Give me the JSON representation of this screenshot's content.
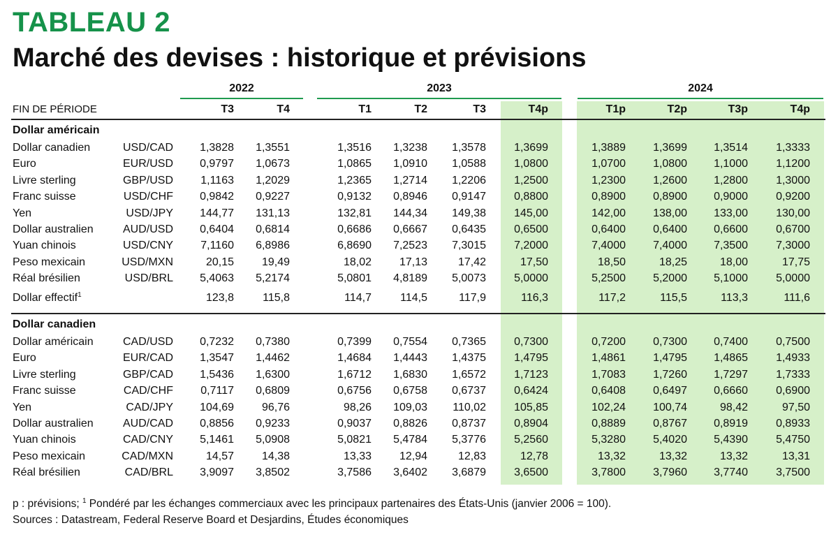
{
  "label": "TABLEAU 2",
  "title": "Marché des devises : historique et prévisions",
  "header": {
    "period_label": "FIN DE PÉRIODE",
    "years": [
      "2022",
      "2023",
      "2024"
    ],
    "columns": [
      "T3",
      "T4",
      "T1",
      "T2",
      "T3",
      "T4p",
      "T1p",
      "T2p",
      "T3p",
      "T4p"
    ]
  },
  "sections": [
    {
      "title": "Dollar américain",
      "rows": [
        {
          "name": "Dollar canadien",
          "pair": "USD/CAD",
          "values": [
            "1,3828",
            "1,3551",
            "1,3516",
            "1,3238",
            "1,3578",
            "1,3699",
            "1,3889",
            "1,3699",
            "1,3514",
            "1,3333"
          ]
        },
        {
          "name": "Euro",
          "pair": "EUR/USD",
          "values": [
            "0,9797",
            "1,0673",
            "1,0865",
            "1,0910",
            "1,0588",
            "1,0800",
            "1,0700",
            "1,0800",
            "1,1000",
            "1,1200"
          ]
        },
        {
          "name": "Livre sterling",
          "pair": "GBP/USD",
          "values": [
            "1,1163",
            "1,2029",
            "1,2365",
            "1,2714",
            "1,2206",
            "1,2500",
            "1,2300",
            "1,2600",
            "1,2800",
            "1,3000"
          ]
        },
        {
          "name": "Franc suisse",
          "pair": "USD/CHF",
          "values": [
            "0,9842",
            "0,9227",
            "0,9132",
            "0,8946",
            "0,9147",
            "0,8800",
            "0,8900",
            "0,8900",
            "0,9000",
            "0,9200"
          ]
        },
        {
          "name": "Yen",
          "pair": "USD/JPY",
          "values": [
            "144,77",
            "131,13",
            "132,81",
            "144,34",
            "149,38",
            "145,00",
            "142,00",
            "138,00",
            "133,00",
            "130,00"
          ]
        },
        {
          "name": "Dollar australien",
          "pair": "AUD/USD",
          "values": [
            "0,6404",
            "0,6814",
            "0,6686",
            "0,6667",
            "0,6435",
            "0,6500",
            "0,6400",
            "0,6400",
            "0,6600",
            "0,6700"
          ]
        },
        {
          "name": "Yuan chinois",
          "pair": "USD/CNY",
          "values": [
            "7,1160",
            "6,8986",
            "6,8690",
            "7,2523",
            "7,3015",
            "7,2000",
            "7,4000",
            "7,4000",
            "7,3500",
            "7,3000"
          ]
        },
        {
          "name": "Peso mexicain",
          "pair": "USD/MXN",
          "values": [
            "20,15",
            "19,49",
            "18,02",
            "17,13",
            "17,42",
            "17,50",
            "18,50",
            "18,25",
            "18,00",
            "17,75"
          ]
        },
        {
          "name": "Réal brésilien",
          "pair": "USD/BRL",
          "values": [
            "5,4063",
            "5,2174",
            "5,0801",
            "4,8189",
            "5,0073",
            "5,0000",
            "5,2500",
            "5,2000",
            "5,1000",
            "5,0000"
          ]
        },
        {
          "name": "Dollar effectif",
          "note": "1",
          "pair": "",
          "values": [
            "123,8",
            "115,8",
            "114,7",
            "114,5",
            "117,9",
            "116,3",
            "117,2",
            "115,5",
            "113,3",
            "111,6"
          ]
        }
      ]
    },
    {
      "title": "Dollar canadien",
      "rows": [
        {
          "name": "Dollar américain",
          "pair": "CAD/USD",
          "values": [
            "0,7232",
            "0,7380",
            "0,7399",
            "0,7554",
            "0,7365",
            "0,7300",
            "0,7200",
            "0,7300",
            "0,7400",
            "0,7500"
          ]
        },
        {
          "name": "Euro",
          "pair": "EUR/CAD",
          "values": [
            "1,3547",
            "1,4462",
            "1,4684",
            "1,4443",
            "1,4375",
            "1,4795",
            "1,4861",
            "1,4795",
            "1,4865",
            "1,4933"
          ]
        },
        {
          "name": "Livre sterling",
          "pair": "GBP/CAD",
          "values": [
            "1,5436",
            "1,6300",
            "1,6712",
            "1,6830",
            "1,6572",
            "1,7123",
            "1,7083",
            "1,7260",
            "1,7297",
            "1,7333"
          ]
        },
        {
          "name": "Franc suisse",
          "pair": "CAD/CHF",
          "values": [
            "0,7117",
            "0,6809",
            "0,6756",
            "0,6758",
            "0,6737",
            "0,6424",
            "0,6408",
            "0,6497",
            "0,6660",
            "0,6900"
          ]
        },
        {
          "name": "Yen",
          "pair": "CAD/JPY",
          "values": [
            "104,69",
            "96,76",
            "98,26",
            "109,03",
            "110,02",
            "105,85",
            "102,24",
            "100,74",
            "98,42",
            "97,50"
          ]
        },
        {
          "name": "Dollar australien",
          "pair": "AUD/CAD",
          "values": [
            "0,8856",
            "0,9233",
            "0,9037",
            "0,8826",
            "0,8737",
            "0,8904",
            "0,8889",
            "0,8767",
            "0,8919",
            "0,8933"
          ]
        },
        {
          "name": "Yuan chinois",
          "pair": "CAD/CNY",
          "values": [
            "5,1461",
            "5,0908",
            "5,0821",
            "5,4784",
            "5,3776",
            "5,2560",
            "5,3280",
            "5,4020",
            "5,4390",
            "5,4750"
          ]
        },
        {
          "name": "Peso mexicain",
          "pair": "CAD/MXN",
          "values": [
            "14,57",
            "14,38",
            "13,33",
            "12,94",
            "12,83",
            "12,78",
            "13,32",
            "13,32",
            "13,32",
            "13,31"
          ]
        },
        {
          "name": "Réal brésilien",
          "pair": "CAD/BRL",
          "values": [
            "3,9097",
            "3,8502",
            "3,7586",
            "3,6402",
            "3,6879",
            "3,6500",
            "3,7800",
            "3,7960",
            "3,7740",
            "3,7500"
          ]
        }
      ]
    }
  ],
  "footnote": {
    "prefix": "p : prévisions; ",
    "marker": "1",
    "text": " Pondéré par les échanges commerciaux avec les principaux partenaires des États-Unis (janvier 2006 = 100)."
  },
  "sources": "Sources : Datastream, Federal Reserve Board et Desjardins, Études économiques"
}
